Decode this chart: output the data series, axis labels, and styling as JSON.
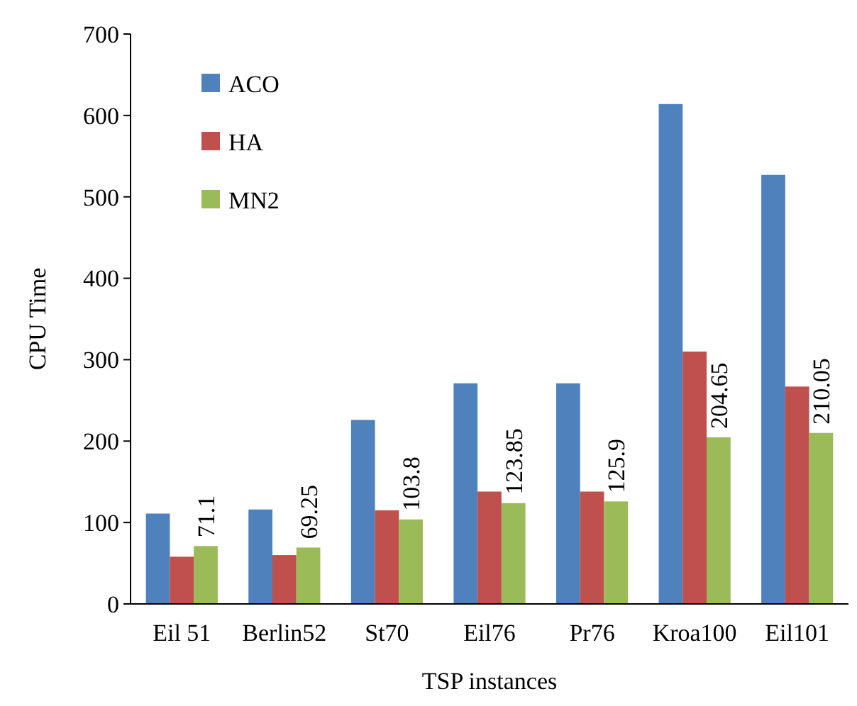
{
  "chart_data": {
    "type": "bar",
    "xlabel": "TSP instances",
    "ylabel": "CPU Time",
    "categories": [
      "Eil 51",
      "Berlin52",
      "St70",
      "Eil76",
      "Pr76",
      "Kroa100",
      "Eil101"
    ],
    "series": [
      {
        "name": "ACO",
        "color": "#4f81bd",
        "values": [
          111,
          116,
          226,
          271,
          271,
          614,
          527
        ]
      },
      {
        "name": "HA",
        "color": "#c0504d",
        "values": [
          58,
          60,
          115,
          138,
          138,
          310,
          267
        ]
      },
      {
        "name": "MN2",
        "color": "#9bbb59",
        "values": [
          71.1,
          69.25,
          103.8,
          123.85,
          125.9,
          204.65,
          210.05
        ],
        "value_labels": [
          "71.1",
          "69.25",
          "103.8",
          "123.85",
          "125.9",
          "204.65",
          "210.05"
        ]
      }
    ],
    "ylim": [
      0,
      700
    ],
    "yticks": [
      0,
      100,
      200,
      300,
      400,
      500,
      600,
      700
    ],
    "legend": "top left"
  }
}
